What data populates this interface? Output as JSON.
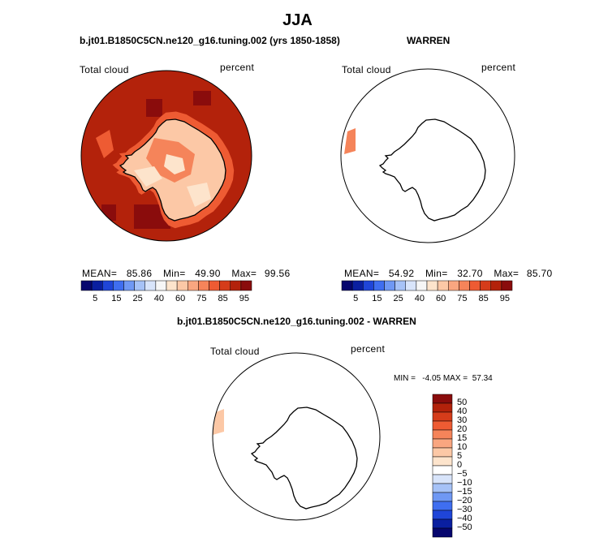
{
  "title": "JJA",
  "panels": {
    "model": {
      "case_title": "b.jt01.B1850C5CN.ne120_g16.tuning.002 (yrs 1850-1858)",
      "var_label": "Total cloud",
      "units": "percent",
      "stats": {
        "mean_label": "MEAN=",
        "mean": "85.86",
        "min_label": "Min=",
        "min": "49.90",
        "max_label": "Max=",
        "max": "99.56"
      }
    },
    "obs": {
      "case_title": "WARREN",
      "var_label": "Total cloud",
      "units": "percent",
      "stats": {
        "mean_label": "MEAN=",
        "mean": "54.92",
        "min_label": "Min=",
        "min": "32.70",
        "max_label": "Max=",
        "max": "85.70"
      }
    },
    "diff": {
      "case_title": "b.jt01.B1850C5CN.ne120_g16.tuning.002 - WARREN",
      "var_label": "Total cloud",
      "units": "percent",
      "minmax": "MIN =   -4.05 MAX =  57.34"
    }
  },
  "colorbar_abs": {
    "labels": [
      "5",
      "15",
      "25",
      "40",
      "60",
      "75",
      "85",
      "95"
    ],
    "colors": [
      "#06066e",
      "#0a1fa0",
      "#1f45d8",
      "#3f6ef0",
      "#6f98f4",
      "#a6c2f7",
      "#d8e4fa",
      "#f6f6f6",
      "#fde4cc",
      "#fcc8a6",
      "#f9a680",
      "#f5845a",
      "#ee5b33",
      "#d53c1a",
      "#b3220b",
      "#8a0c0c"
    ]
  },
  "colorbar_diff": {
    "labels": [
      "50",
      "40",
      "30",
      "20",
      "15",
      "10",
      "5",
      "0",
      "−5",
      "−10",
      "−15",
      "−20",
      "−30",
      "−40",
      "−50"
    ],
    "colors": [
      "#8a0c0c",
      "#b3220b",
      "#d53c1a",
      "#ee5b33",
      "#f5845a",
      "#f9a680",
      "#fcc8a6",
      "#fde4cc",
      "#ffffff",
      "#d8e4fa",
      "#a6c2f7",
      "#6f98f4",
      "#3f6ef0",
      "#1f45d8",
      "#0a1fa0",
      "#06066e"
    ]
  }
}
